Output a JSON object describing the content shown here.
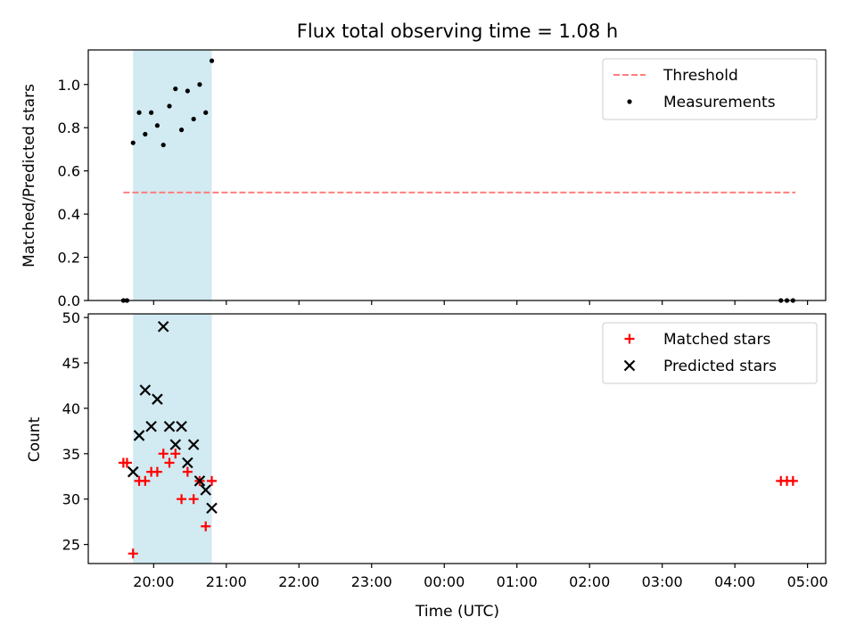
{
  "chart_data": [
    {
      "type": "scatter",
      "title": "Flux total observing time = 1.08 h",
      "ylabel": "Matched/Predicted stars",
      "xlabel": "",
      "ylim": [
        0,
        1.16
      ],
      "yticks": [
        0.0,
        0.2,
        0.4,
        0.6,
        0.8,
        1.0
      ],
      "ytick_labels": [
        "0.0",
        "0.2",
        "0.4",
        "0.6",
        "0.8",
        "1.0"
      ],
      "xlim": [
        "19:06",
        "05:15"
      ],
      "xticks": [
        "20:00",
        "21:00",
        "22:00",
        "23:00",
        "00:00",
        "01:00",
        "02:00",
        "03:00",
        "04:00",
        "05:00"
      ],
      "highlight_span": [
        "19:43",
        "20:48"
      ],
      "highlight_color": "#add8e6",
      "legend_position": "top-right",
      "grid": false,
      "series": [
        {
          "name": "Threshold",
          "style": "dashed-line",
          "color": "#ff7f7f",
          "x": [
            "19:35",
            "04:50"
          ],
          "y": [
            0.5,
            0.5
          ]
        },
        {
          "name": "Measurements",
          "style": "dot",
          "color": "#000000",
          "x": [
            "19:35",
            "19:38",
            "19:43",
            "19:48",
            "19:53",
            "19:58",
            "20:03",
            "20:08",
            "20:13",
            "20:18",
            "20:23",
            "20:28",
            "20:33",
            "20:38",
            "20:43",
            "20:48",
            "04:38",
            "04:43",
            "04:48"
          ],
          "y": [
            0.0,
            0.0,
            0.73,
            0.87,
            0.77,
            0.87,
            0.81,
            0.72,
            0.9,
            0.98,
            0.79,
            0.97,
            0.84,
            1.0,
            0.87,
            1.11,
            0.0,
            0.0,
            0.0
          ]
        }
      ]
    },
    {
      "type": "scatter",
      "title": "",
      "xlabel": "Time (UTC)",
      "ylabel": "Count",
      "ylim": [
        22.9,
        50.4
      ],
      "yticks": [
        25,
        30,
        35,
        40,
        45,
        50
      ],
      "ytick_labels": [
        "25",
        "30",
        "35",
        "40",
        "45",
        "50"
      ],
      "xlim": [
        "19:06",
        "05:15"
      ],
      "xticks": [
        "20:00",
        "21:00",
        "22:00",
        "23:00",
        "00:00",
        "01:00",
        "02:00",
        "03:00",
        "04:00",
        "05:00"
      ],
      "xtick_labels": [
        "20:00",
        "21:00",
        "22:00",
        "23:00",
        "00:00",
        "01:00",
        "02:00",
        "03:00",
        "04:00",
        "05:00"
      ],
      "highlight_span": [
        "19:43",
        "20:48"
      ],
      "highlight_color": "#add8e6",
      "legend_position": "top-right",
      "grid": false,
      "series": [
        {
          "name": "Matched stars",
          "style": "plus",
          "color": "#ff0000",
          "x": [
            "19:35",
            "19:38",
            "19:43",
            "19:48",
            "19:53",
            "19:58",
            "20:03",
            "20:08",
            "20:13",
            "20:18",
            "20:23",
            "20:28",
            "20:33",
            "20:38",
            "20:43",
            "20:48",
            "04:38",
            "04:43",
            "04:48"
          ],
          "y": [
            34,
            34,
            24,
            32,
            32,
            33,
            33,
            35,
            34,
            35,
            30,
            33,
            30,
            32,
            27,
            32,
            32,
            32,
            32
          ]
        },
        {
          "name": "Predicted stars",
          "style": "x",
          "color": "#000000",
          "x": [
            "19:43",
            "19:48",
            "19:53",
            "19:58",
            "20:03",
            "20:08",
            "20:13",
            "20:18",
            "20:23",
            "20:28",
            "20:33",
            "20:38",
            "20:43",
            "20:48"
          ],
          "y": [
            33,
            37,
            42,
            38,
            41,
            49,
            38,
            36,
            38,
            34,
            36,
            32,
            31,
            29
          ]
        }
      ]
    }
  ]
}
